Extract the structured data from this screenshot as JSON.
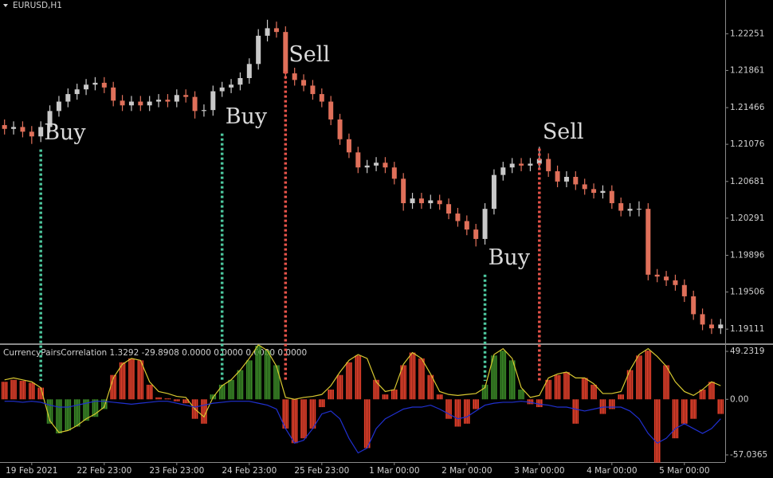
{
  "chart_data": [
    {
      "type": "candlestick",
      "title": "EURUSD,H1",
      "categories": [
        null,
        null,
        null,
        "19 Feb 2021",
        null,
        null,
        null,
        null,
        null,
        null,
        null,
        "22 Feb 23:00",
        null,
        null,
        null,
        null,
        null,
        null,
        null,
        "23 Feb 23:00",
        null,
        null,
        null,
        null,
        null,
        null,
        null,
        "24 Feb 23:00",
        null,
        null,
        null,
        null,
        null,
        null,
        null,
        "25 Feb 23:00",
        null,
        null,
        null,
        null,
        null,
        null,
        null,
        "1 Mar 00:00",
        null,
        null,
        null,
        null,
        null,
        null,
        null,
        "2 Mar 00:00",
        null,
        null,
        null,
        null,
        null,
        null,
        null,
        "3 Mar 00:00",
        null,
        null,
        null,
        null,
        null,
        null,
        null,
        "4 Mar 00:00",
        null,
        null,
        null,
        null,
        null,
        null,
        null,
        "5 Mar 00:00",
        null,
        null,
        null,
        null
      ],
      "open": [
        1.2128,
        1.2124,
        1.2126,
        1.2121,
        1.2116,
        1.2126,
        1.2143,
        1.2153,
        1.2161,
        1.2166,
        1.2171,
        1.2173,
        1.2168,
        1.2154,
        1.2149,
        1.2153,
        1.2149,
        1.2153,
        1.2155,
        1.2153,
        1.216,
        1.2158,
        1.2143,
        1.2144,
        1.2164,
        1.2168,
        1.2171,
        1.2178,
        1.2193,
        1.2223,
        1.2231,
        1.2227,
        1.2183,
        1.2176,
        1.217,
        1.2161,
        1.2153,
        1.2134,
        1.2113,
        1.2099,
        1.2083,
        1.2085,
        1.2088,
        1.2083,
        1.2071,
        1.2045,
        1.205,
        1.2045,
        1.2048,
        1.2044,
        1.2034,
        1.2026,
        1.2017,
        1.2007,
        1.2039,
        1.2075,
        1.2083,
        1.2087,
        1.2085,
        1.2087,
        1.2092,
        1.2079,
        1.2068,
        1.2073,
        1.2065,
        1.206,
        1.2056,
        1.2058,
        1.2045,
        1.2037,
        1.2039,
        1.2039,
        1.1969,
        1.1967,
        1.1963,
        1.1958,
        1.1946,
        1.1927,
        1.1916,
        1.1912
      ],
      "high": [
        1.2134,
        1.2132,
        1.2132,
        1.2127,
        1.2132,
        1.2149,
        1.2159,
        1.2167,
        1.2172,
        1.2177,
        1.2179,
        1.2179,
        1.2174,
        1.216,
        1.2159,
        1.2159,
        1.2159,
        1.2161,
        1.2161,
        1.2166,
        1.2166,
        1.2164,
        1.215,
        1.217,
        1.2174,
        1.2177,
        1.2184,
        1.2199,
        1.223,
        1.224,
        1.2238,
        1.2233,
        1.2189,
        1.2182,
        1.2176,
        1.2167,
        1.2159,
        1.214,
        1.2119,
        1.2105,
        1.2091,
        1.2094,
        1.2094,
        1.2089,
        1.2077,
        1.2056,
        1.2056,
        1.2054,
        1.2054,
        1.205,
        1.204,
        1.2032,
        1.2023,
        1.2045,
        1.2081,
        1.2089,
        1.2093,
        1.2093,
        1.2093,
        1.2105,
        1.2098,
        1.2085,
        1.2079,
        1.2079,
        1.2071,
        1.2066,
        1.2064,
        1.2064,
        1.2051,
        1.2045,
        1.2047,
        1.2045,
        1.1975,
        1.1973,
        1.1969,
        1.1964,
        1.1952,
        1.1933,
        1.1922,
        1.1922
      ],
      "low": [
        1.2118,
        1.2118,
        1.2115,
        1.2108,
        1.211,
        1.212,
        1.2137,
        1.2147,
        1.2155,
        1.216,
        1.2165,
        1.2162,
        1.2148,
        1.2143,
        1.2143,
        1.2143,
        1.2143,
        1.2147,
        1.2147,
        1.2147,
        1.2152,
        1.2135,
        1.2137,
        1.2138,
        1.2158,
        1.2162,
        1.2165,
        1.2172,
        1.2187,
        1.2217,
        1.2221,
        1.2177,
        1.217,
        1.2164,
        1.2155,
        1.2147,
        1.2128,
        1.2107,
        1.2093,
        1.2077,
        1.2077,
        1.2079,
        1.2077,
        1.2065,
        1.2037,
        1.2039,
        1.2039,
        1.2039,
        1.2038,
        1.2028,
        1.202,
        1.2011,
        1.1999,
        1.2001,
        1.2033,
        1.2069,
        1.2077,
        1.2079,
        1.2079,
        1.2081,
        1.2073,
        1.2062,
        1.2062,
        1.2059,
        1.2054,
        1.205,
        1.205,
        1.2039,
        1.2031,
        1.2031,
        1.2031,
        1.1963,
        1.1961,
        1.1957,
        1.1952,
        1.194,
        1.1921,
        1.191,
        1.1906,
        1.1906
      ],
      "close": [
        1.2124,
        1.2126,
        1.2121,
        1.2116,
        1.2126,
        1.2143,
        1.2153,
        1.2161,
        1.2166,
        1.2171,
        1.2173,
        1.2168,
        1.2154,
        1.2149,
        1.2153,
        1.2149,
        1.2153,
        1.2155,
        1.2153,
        1.216,
        1.2158,
        1.2143,
        1.2144,
        1.2164,
        1.2168,
        1.2171,
        1.2178,
        1.2193,
        1.2223,
        1.2231,
        1.2227,
        1.2183,
        1.2176,
        1.217,
        1.2161,
        1.2153,
        1.2134,
        1.2113,
        1.2099,
        1.2083,
        1.2085,
        1.2088,
        1.2083,
        1.2071,
        1.2045,
        1.205,
        1.2045,
        1.2048,
        1.2044,
        1.2034,
        1.2026,
        1.2017,
        1.2007,
        1.2039,
        1.2075,
        1.2083,
        1.2087,
        1.2085,
        1.2087,
        1.2092,
        1.2079,
        1.2068,
        1.2073,
        1.2065,
        1.206,
        1.2056,
        1.2058,
        1.2045,
        1.2037,
        1.2039,
        1.2039,
        1.1969,
        1.1967,
        1.1963,
        1.1958,
        1.1946,
        1.1927,
        1.1916,
        1.1912,
        1.1916
      ],
      "up_color": "#c9c9c9",
      "down_color": "#e0705a",
      "ylim": [
        1.1896,
        1.2261
      ],
      "yticks": [
        1.22251,
        1.21861,
        1.21466,
        1.21076,
        1.20681,
        1.20291,
        1.19896,
        1.19506,
        1.19111
      ],
      "annotations": [
        {
          "text": "Buy",
          "index": 4,
          "price": 1.2119,
          "color": "#4ec9a0"
        },
        {
          "text": "Buy",
          "index": 24,
          "price": 1.2136,
          "color": "#4ec9a0"
        },
        {
          "text": "Sell",
          "index": 31,
          "price": 1.2202,
          "color": "#e8544a"
        },
        {
          "text": "Buy",
          "index": 53,
          "price": 1.1986,
          "color": "#4ec9a0"
        },
        {
          "text": "Sell",
          "index": 59,
          "price": 1.212,
          "color": "#e8544a"
        }
      ]
    },
    {
      "type": "bar",
      "title": "CurrencyPairsCorrelation 1.3292 -29.8908 0.0000 0.0000 0.0000 0.0000",
      "values": [
        18,
        20,
        19,
        17,
        12,
        -25,
        -35,
        -32,
        -28,
        -22,
        -18,
        -10,
        25,
        38,
        42,
        40,
        15,
        2,
        1,
        -2,
        -4,
        -20,
        -25,
        5,
        15,
        20,
        30,
        40,
        55,
        50,
        35,
        -30,
        -45,
        -40,
        -30,
        -8,
        10,
        25,
        38,
        45,
        -50,
        20,
        5,
        10,
        35,
        48,
        42,
        25,
        5,
        -20,
        -28,
        -25,
        -10,
        15,
        45,
        50,
        40,
        10,
        -5,
        -8,
        20,
        25,
        28,
        -25,
        22,
        15,
        -15,
        -10,
        5,
        30,
        45,
        50,
        -65,
        35,
        -40,
        -25,
        -20,
        10,
        18,
        -15
      ],
      "colors": [
        "#e8412c",
        "#e8412c",
        "#e8412c",
        "#e8412c",
        "#e8412c",
        "#3c8c28",
        "#3c8c28",
        "#3c8c28",
        "#3c8c28",
        "#3c8c28",
        "#3c8c28",
        "#3c8c28",
        "#e8412c",
        "#e8412c",
        "#e8412c",
        "#e8412c",
        "#e8412c",
        "#e8412c",
        "#e8412c",
        "#e8412c",
        "#e8412c",
        "#e8412c",
        "#e8412c",
        "#3c8c28",
        "#3c8c28",
        "#3c8c28",
        "#3c8c28",
        "#3c8c28",
        "#3c8c28",
        "#3c8c28",
        "#3c8c28",
        "#e8412c",
        "#e8412c",
        "#e8412c",
        "#e8412c",
        "#e8412c",
        "#e8412c",
        "#e8412c",
        "#e8412c",
        "#e8412c",
        "#e8412c",
        "#e8412c",
        "#e8412c",
        "#e8412c",
        "#e8412c",
        "#e8412c",
        "#e8412c",
        "#e8412c",
        "#e8412c",
        "#e8412c",
        "#e8412c",
        "#e8412c",
        "#e8412c",
        "#3c8c28",
        "#3c8c28",
        "#3c8c28",
        "#3c8c28",
        "#3c8c28",
        "#e8412c",
        "#e8412c",
        "#e8412c",
        "#e8412c",
        "#e8412c",
        "#e8412c",
        "#e8412c",
        "#e8412c",
        "#e8412c",
        "#e8412c",
        "#e8412c",
        "#e8412c",
        "#e8412c",
        "#e8412c",
        "#e8412c",
        "#e8412c",
        "#e8412c",
        "#e8412c",
        "#e8412c",
        "#e8412c",
        "#e8412c",
        "#e8412c"
      ],
      "overlay_lines": [
        {
          "color": "#d8c830",
          "values": [
            20,
            22,
            20,
            18,
            12,
            -22,
            -34,
            -32,
            -27,
            -20,
            -15,
            -8,
            22,
            36,
            42,
            40,
            18,
            8,
            6,
            3,
            2,
            -10,
            -18,
            2,
            14,
            20,
            30,
            42,
            56,
            50,
            34,
            2,
            0,
            2,
            3,
            5,
            14,
            28,
            40,
            46,
            42,
            18,
            8,
            10,
            36,
            48,
            42,
            26,
            8,
            5,
            4,
            5,
            6,
            12,
            46,
            52,
            42,
            12,
            2,
            4,
            22,
            26,
            28,
            22,
            22,
            16,
            6,
            6,
            8,
            30,
            46,
            52,
            44,
            34,
            18,
            8,
            4,
            10,
            18,
            14
          ]
        },
        {
          "color": "#2030d0",
          "values": [
            -2,
            -2,
            -3,
            -2,
            -3,
            -6,
            -8,
            -8,
            -6,
            -4,
            -2,
            -2,
            -3,
            -4,
            -5,
            -4,
            -3,
            -2,
            -2,
            -4,
            -6,
            -8,
            -6,
            -4,
            -3,
            -2,
            -2,
            -2,
            -4,
            -6,
            -10,
            -30,
            -45,
            -42,
            -30,
            -15,
            -12,
            -20,
            -40,
            -55,
            -50,
            -30,
            -20,
            -15,
            -10,
            -8,
            -8,
            -6,
            -10,
            -15,
            -20,
            -18,
            -12,
            -6,
            -4,
            -3,
            -3,
            -2,
            -3,
            -5,
            -6,
            -8,
            -8,
            -10,
            -12,
            -10,
            -8,
            -8,
            -8,
            -12,
            -20,
            -35,
            -45,
            -40,
            -30,
            -25,
            -30,
            -35,
            -30,
            -20
          ]
        }
      ],
      "ylim": [
        -64.4,
        55
      ],
      "yticks": [
        49.2319,
        {
          "value": 0,
          "label": "0.00"
        },
        -57.0365
      ]
    }
  ]
}
